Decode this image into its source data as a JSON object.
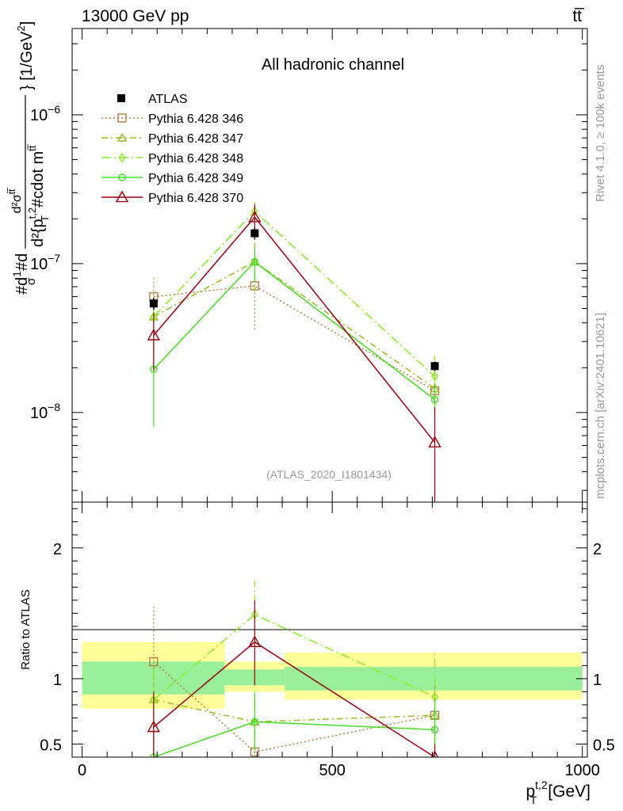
{
  "header": {
    "left": "13000 GeV pp",
    "right": "tt̅"
  },
  "side_text": {
    "rivet": "Rivet 4.1.0, ≥ 100k events",
    "mcplots": "mcplots.cern.ch [arXiv:2401.10621]"
  },
  "chart_data": {
    "type": "line",
    "title": "All hadronic channel",
    "analysis_label": "(ATLAS_2020_I1801434)",
    "x": [
      143,
      345,
      705
    ],
    "xlim": [
      -20,
      1010
    ],
    "xticks": [
      0,
      500,
      1000
    ],
    "xtick_labels": [
      "0",
      "500",
      "1000"
    ],
    "xlabel_main": "p",
    "xlabel_sup": "t,2",
    "xlabel_sub": "T",
    "xlabel_unit": "[GeV]",
    "ylabel_main": "#dσ#d / d²σᵗᵗ d²{p_T^{t,2} #cdot m^{tt}} [1/GeV²]",
    "ylabel_parts": {
      "part1": "#d",
      "part2": "#d",
      "frac_num": "d²σ",
      "frac_num_sup": "tt̅",
      "frac_den": "d²{p",
      "frac_den_sup": "t,2",
      "frac_den_sub": "T",
      "frac_den_rest": "#cdot m",
      "frac_den_rest_sup": "tt̅",
      "unit": "} [1/GeV",
      "unit_sup": "2",
      "unit_close": "]",
      "one": "1",
      "sigma": "σ"
    },
    "ylim": [
      2.5e-09,
      3.8e-06
    ],
    "yscale": "log",
    "ytick_labels": [
      {
        "base": "10",
        "exp": "−6",
        "value": 1e-06
      },
      {
        "base": "10",
        "exp": "−7",
        "value": 1e-07
      },
      {
        "base": "10",
        "exp": "−8",
        "value": 1e-08
      }
    ],
    "ratio": {
      "ylabel": "Ratio to ATLAS",
      "ylim": [
        0.4,
        2.35
      ],
      "yticks": [
        0.5,
        1,
        2
      ],
      "ytick_labels": [
        "0.5",
        "1",
        "2"
      ],
      "bins": [
        [
          0,
          285
        ],
        [
          285,
          405
        ],
        [
          405,
          1000
        ]
      ],
      "band_inner": [
        [
          0.88,
          1.13
        ],
        [
          0.95,
          1.07
        ],
        [
          0.91,
          1.09
        ]
      ],
      "band_outer": [
        [
          0.77,
          1.28
        ],
        [
          0.9,
          1.13
        ],
        [
          0.84,
          1.2
        ]
      ]
    },
    "data": {
      "name": "ATLAS",
      "values": [
        5.4e-08,
        1.6e-07,
        2.05e-08
      ],
      "err_lo": [
        4.9e-08,
        1.45e-07,
        1.9e-08
      ],
      "err_hi": [
        5.9e-08,
        1.75e-07,
        2.2e-08
      ]
    },
    "series": [
      {
        "name": "Pythia 6.428 346",
        "color": "#b08040",
        "dash": "2,3",
        "marker": "square",
        "values": [
          6e-08,
          7.1e-08,
          1.4e-08
        ],
        "err_lo": [
          4e-08,
          3.6e-08,
          1e-08
        ],
        "err_hi": [
          8.1e-08,
          1e-07,
          1.8e-08
        ],
        "ratio": [
          1.13,
          0.44,
          0.72
        ],
        "ratio_lo": [
          0.42,
          0.3,
          0.5
        ],
        "ratio_hi": [
          1.55,
          0.6,
          0.95
        ]
      },
      {
        "name": "Pythia 6.428 347",
        "color": "#99bb22",
        "dash": "8,4,2,4",
        "marker": "triangle",
        "values": [
          4.4e-08,
          1.03e-07,
          1.45e-08
        ],
        "err_lo": [
          2.6e-08,
          6.5e-08,
          1.05e-08
        ],
        "err_hi": [
          6e-08,
          1.4e-07,
          1.9e-08
        ],
        "ratio": [
          0.84,
          0.67,
          0.72
        ],
        "ratio_lo": [
          0.5,
          0.45,
          0.5
        ],
        "ratio_hi": [
          1.15,
          0.88,
          0.95
        ]
      },
      {
        "name": "Pythia 6.428 348",
        "color": "#88ee22",
        "dash": "12,4,2,4",
        "marker": "diamond",
        "values": [
          4.4e-08,
          2.25e-07,
          1.75e-08
        ],
        "err_lo": [
          3.2e-08,
          1.9e-07,
          1.3e-08
        ],
        "err_hi": [
          5.6e-08,
          2.6e-07,
          2.4e-08
        ],
        "ratio": [
          0.84,
          1.49,
          0.86
        ],
        "ratio_lo": [
          0.6,
          1.3,
          0.55
        ],
        "ratio_hi": [
          1.08,
          1.75,
          1.22
        ]
      },
      {
        "name": "Pythia 6.428 349",
        "color": "#44dd22",
        "dash": "",
        "marker": "circle",
        "values": [
          1.95e-08,
          1.03e-07,
          1.22e-08
        ],
        "err_lo": [
          8e-09,
          7.5e-08,
          9e-09
        ],
        "err_hi": [
          3e-08,
          1.3e-07,
          1.55e-08
        ],
        "ratio": [
          0.33,
          0.67,
          0.61
        ],
        "ratio_lo": [
          0.15,
          0.45,
          0.4
        ],
        "ratio_hi": [
          0.55,
          0.9,
          0.85
        ]
      },
      {
        "name": "Pythia 6.428 370",
        "color": "#990011",
        "dash": "",
        "marker": "triangle-open",
        "values": [
          3.3e-08,
          2.05e-07,
          6.3e-09
        ],
        "err_lo": [
          1.9e-08,
          1.6e-07,
          1e-09
        ],
        "err_hi": [
          4.7e-08,
          2.5e-07,
          1.08e-08
        ],
        "ratio": [
          0.63,
          1.28,
          0.31
        ],
        "ratio_lo": [
          0.38,
          0.95,
          0.05
        ],
        "ratio_hi": [
          0.9,
          1.6,
          0.5
        ]
      }
    ]
  }
}
